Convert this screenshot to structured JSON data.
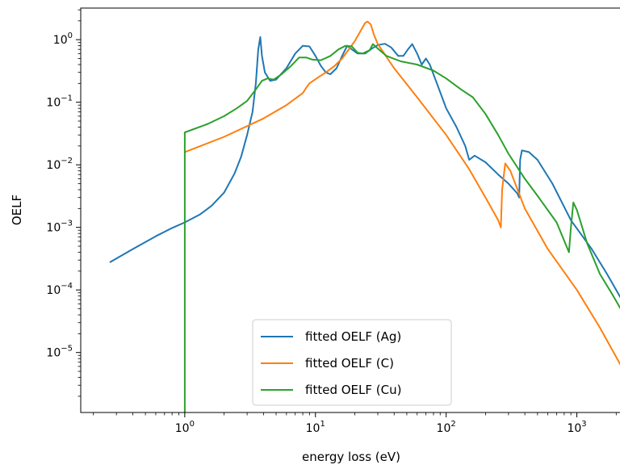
{
  "chart_data": {
    "type": "line",
    "title": "",
    "xlabel": "energy loss (eV)",
    "ylabel": "OELF",
    "xscale": "log",
    "yscale": "log",
    "xlim": [
      0.16,
      2200
    ],
    "ylim": [
      1.1e-06,
      3.2
    ],
    "grid": false,
    "legend_position": "lower-center",
    "x_ticks": [
      {
        "value": 1,
        "base": "10",
        "exp": "0"
      },
      {
        "value": 10,
        "base": "10",
        "exp": "1"
      },
      {
        "value": 100,
        "base": "10",
        "exp": "2"
      },
      {
        "value": 1000,
        "base": "10",
        "exp": "3"
      }
    ],
    "y_ticks": [
      {
        "value": 1e-05,
        "base": "10",
        "exp": "−5"
      },
      {
        "value": 0.0001,
        "base": "10",
        "exp": "−4"
      },
      {
        "value": 0.001,
        "base": "10",
        "exp": "−3"
      },
      {
        "value": 0.01,
        "base": "10",
        "exp": "−2"
      },
      {
        "value": 0.1,
        "base": "10",
        "exp": "−1"
      },
      {
        "value": 1,
        "base": "10",
        "exp": "0"
      }
    ],
    "series": [
      {
        "name": "fitted OELF (Ag)",
        "color": "#1f77b4",
        "points": [
          [
            0.27,
            0.00028
          ],
          [
            0.4,
            0.00045
          ],
          [
            0.6,
            0.00072
          ],
          [
            0.8,
            0.00098
          ],
          [
            1.0,
            0.0012
          ],
          [
            1.3,
            0.0016
          ],
          [
            1.6,
            0.0022
          ],
          [
            2.0,
            0.0036
          ],
          [
            2.4,
            0.0072
          ],
          [
            2.7,
            0.0135
          ],
          [
            3.0,
            0.03
          ],
          [
            3.3,
            0.07
          ],
          [
            3.5,
            0.2
          ],
          [
            3.65,
            0.7
          ],
          [
            3.78,
            1.1
          ],
          [
            3.9,
            0.55
          ],
          [
            4.1,
            0.3
          ],
          [
            4.5,
            0.22
          ],
          [
            5.0,
            0.23
          ],
          [
            6.0,
            0.35
          ],
          [
            7.0,
            0.6
          ],
          [
            8.0,
            0.8
          ],
          [
            9.0,
            0.78
          ],
          [
            10.0,
            0.55
          ],
          [
            11.0,
            0.38
          ],
          [
            12.0,
            0.3
          ],
          [
            13.0,
            0.28
          ],
          [
            14.5,
            0.35
          ],
          [
            16.0,
            0.55
          ],
          [
            17.5,
            0.8
          ],
          [
            19.0,
            0.7
          ],
          [
            21.0,
            0.6
          ],
          [
            24.0,
            0.6
          ],
          [
            27.0,
            0.72
          ],
          [
            30.0,
            0.82
          ],
          [
            34.0,
            0.86
          ],
          [
            38.0,
            0.75
          ],
          [
            43.0,
            0.55
          ],
          [
            47.0,
            0.55
          ],
          [
            51.0,
            0.7
          ],
          [
            55.0,
            0.85
          ],
          [
            60.0,
            0.6
          ],
          [
            65.0,
            0.4
          ],
          [
            70.0,
            0.5
          ],
          [
            75.0,
            0.4
          ],
          [
            85.0,
            0.2
          ],
          [
            100.0,
            0.08
          ],
          [
            120.0,
            0.04
          ],
          [
            140.0,
            0.02
          ],
          [
            150.0,
            0.012
          ],
          [
            165.0,
            0.014
          ],
          [
            200.0,
            0.011
          ],
          [
            250.0,
            0.007
          ],
          [
            300.0,
            0.005
          ],
          [
            350.0,
            0.0035
          ],
          [
            362.0,
            0.003
          ],
          [
            368.0,
            0.012
          ],
          [
            380.0,
            0.017
          ],
          [
            430.0,
            0.016
          ],
          [
            500.0,
            0.012
          ],
          [
            650.0,
            0.005
          ],
          [
            900.0,
            0.0013
          ],
          [
            1300.0,
            0.00045
          ],
          [
            1700.0,
            0.00018
          ],
          [
            2300.0,
            6e-05
          ]
        ]
      },
      {
        "name": "fitted OELF (C)",
        "color": "#ff7f0e",
        "points": [
          [
            1.0,
            0.016
          ],
          [
            2.0,
            0.028
          ],
          [
            4.0,
            0.055
          ],
          [
            6.0,
            0.09
          ],
          [
            8.0,
            0.14
          ],
          [
            8.5,
            0.17
          ],
          [
            9.0,
            0.2
          ],
          [
            10.5,
            0.25
          ],
          [
            12.0,
            0.3
          ],
          [
            14.0,
            0.38
          ],
          [
            16.0,
            0.5
          ],
          [
            18.0,
            0.7
          ],
          [
            20.0,
            0.95
          ],
          [
            22.0,
            1.35
          ],
          [
            24.0,
            1.85
          ],
          [
            25.0,
            1.95
          ],
          [
            26.5,
            1.75
          ],
          [
            28.0,
            1.2
          ],
          [
            30.0,
            0.85
          ],
          [
            40.0,
            0.35
          ],
          [
            60.0,
            0.12
          ],
          [
            100.0,
            0.03
          ],
          [
            150.0,
            0.0085
          ],
          [
            200.0,
            0.003
          ],
          [
            250.0,
            0.0013
          ],
          [
            262.0,
            0.001
          ],
          [
            268.0,
            0.004
          ],
          [
            283.0,
            0.0105
          ],
          [
            310.0,
            0.008
          ],
          [
            400.0,
            0.002
          ],
          [
            600.0,
            0.00045
          ],
          [
            1000.0,
            0.0001
          ],
          [
            1500.0,
            2.5e-05
          ],
          [
            2300.0,
            5e-06
          ]
        ]
      },
      {
        "name": "fitted OELF (Cu)",
        "color": "#2ca02c",
        "points": [
          [
            1.0,
            1.1e-06
          ],
          [
            1.0,
            0.033
          ],
          [
            1.5,
            0.045
          ],
          [
            2.0,
            0.06
          ],
          [
            2.5,
            0.08
          ],
          [
            3.0,
            0.105
          ],
          [
            3.5,
            0.16
          ],
          [
            3.9,
            0.22
          ],
          [
            4.3,
            0.24
          ],
          [
            4.8,
            0.23
          ],
          [
            5.5,
            0.28
          ],
          [
            6.5,
            0.38
          ],
          [
            7.5,
            0.52
          ],
          [
            8.5,
            0.52
          ],
          [
            9.5,
            0.48
          ],
          [
            11.0,
            0.47
          ],
          [
            13.0,
            0.55
          ],
          [
            15.0,
            0.7
          ],
          [
            17.0,
            0.8
          ],
          [
            19.0,
            0.78
          ],
          [
            21.0,
            0.62
          ],
          [
            23.0,
            0.6
          ],
          [
            26.0,
            0.68
          ],
          [
            27.5,
            0.85
          ],
          [
            30.0,
            0.72
          ],
          [
            35.0,
            0.55
          ],
          [
            45.0,
            0.45
          ],
          [
            60.0,
            0.4
          ],
          [
            80.0,
            0.32
          ],
          [
            100.0,
            0.24
          ],
          [
            130.0,
            0.16
          ],
          [
            160.0,
            0.12
          ],
          [
            200.0,
            0.065
          ],
          [
            250.0,
            0.03
          ],
          [
            300.0,
            0.015
          ],
          [
            400.0,
            0.006
          ],
          [
            500.0,
            0.0032
          ],
          [
            700.0,
            0.0012
          ],
          [
            870.0,
            0.0004
          ],
          [
            900.0,
            0.001
          ],
          [
            940.0,
            0.0025
          ],
          [
            1000.0,
            0.0019
          ],
          [
            1200.0,
            0.00055
          ],
          [
            1500.0,
            0.00018
          ],
          [
            1900.0,
            8e-05
          ],
          [
            2300.0,
            4e-05
          ]
        ]
      }
    ]
  }
}
